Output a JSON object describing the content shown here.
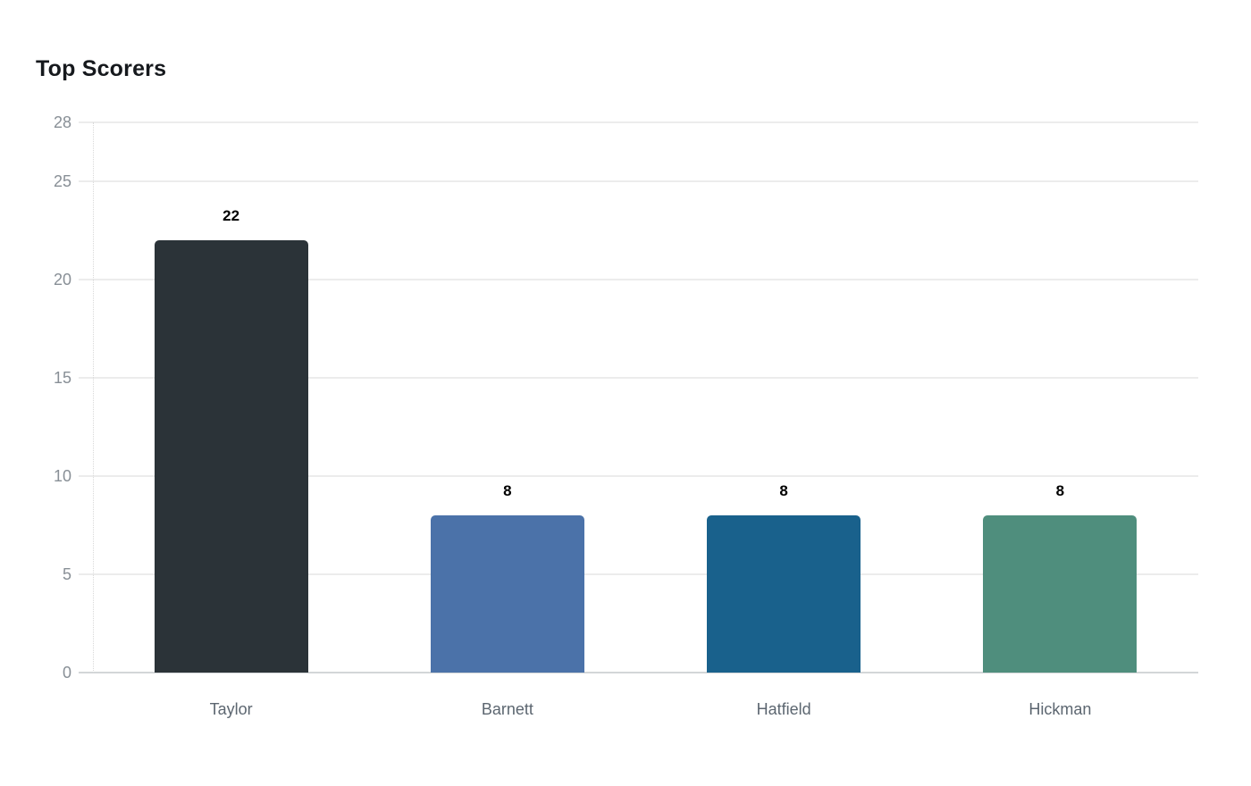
{
  "chart_data": {
    "type": "bar",
    "title": "Top Scorers",
    "categories": [
      "Taylor",
      "Barnett",
      "Hatfield",
      "Hickman"
    ],
    "values": [
      22,
      8,
      8,
      8
    ],
    "data_labels": [
      "22",
      "8",
      "8",
      "8"
    ],
    "bar_colors": [
      "#2b3338",
      "#4b72a9",
      "#19618c",
      "#4f8e7d"
    ],
    "yticks": [
      0,
      5,
      10,
      15,
      20,
      25,
      28
    ],
    "ylim": [
      0,
      28
    ],
    "xlabel": "",
    "ylabel": "",
    "legend": "none",
    "grid": "horizontal-light",
    "background": "#ffffff",
    "colors": {
      "title_text": "#16191d",
      "value_label_text": "#000000",
      "y_tick_text": "#888f96",
      "x_tick_text": "#5c6670",
      "gridline": "#ececec",
      "axis_line": "#d3d6d8"
    }
  }
}
